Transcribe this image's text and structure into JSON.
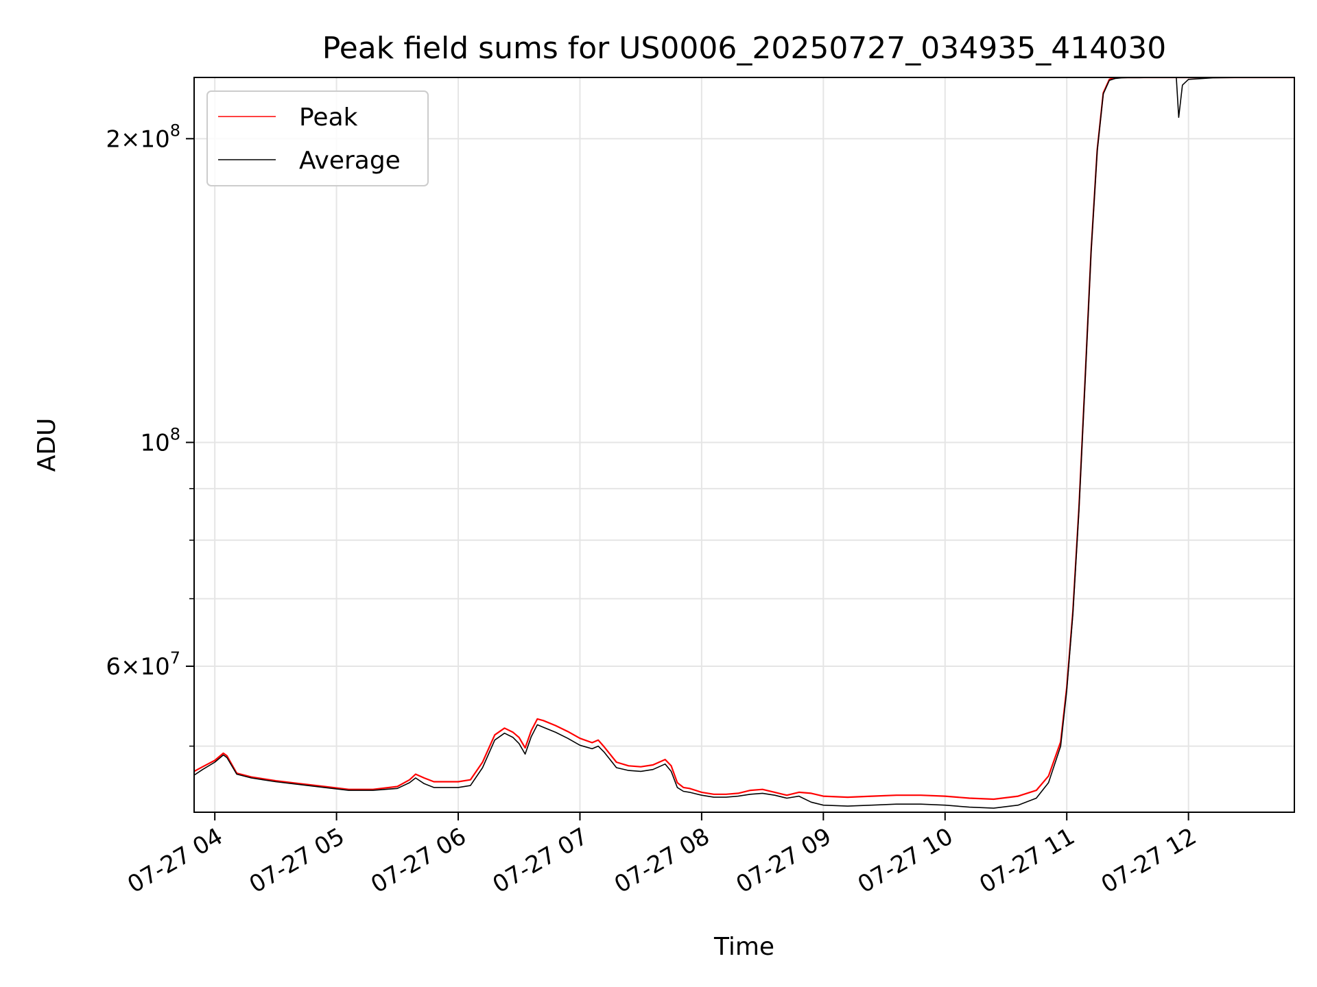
{
  "chart_data": {
    "type": "line",
    "title": "Peak field sums for US0006_20250727_034935_414030",
    "xlabel": "Time",
    "ylabel": "ADU",
    "y_scale": "log",
    "x_unit": "hours on 2025-07-27",
    "xlim": [
      3.83,
      12.87
    ],
    "ylim": [
      43000000,
      230000000
    ],
    "x_tick_values": [
      4,
      5,
      6,
      7,
      8,
      9,
      10,
      11,
      12
    ],
    "x_tick_labels": [
      "07-27 04",
      "07-27 05",
      "07-27 06",
      "07-27 07",
      "07-27 08",
      "07-27 09",
      "07-27 10",
      "07-27 11",
      "07-27 12"
    ],
    "y_tick_labels": [
      {
        "value": 200000000,
        "mantissa": "2",
        "exponent": "8"
      },
      {
        "value": 100000000,
        "mantissa": "",
        "exponent": "8"
      },
      {
        "value": 60000000,
        "mantissa": "6",
        "exponent": "7"
      }
    ],
    "y_minor_ticks": [
      50000000,
      70000000,
      80000000,
      90000000
    ],
    "grid": true,
    "legend_position": "top-left",
    "series": [
      {
        "name": "Peak",
        "color": "#ff0000",
        "x": [
          3.83,
          3.9,
          4.0,
          4.07,
          4.1,
          4.18,
          4.3,
          4.5,
          4.7,
          4.9,
          5.1,
          5.3,
          5.5,
          5.6,
          5.65,
          5.72,
          5.8,
          5.9,
          6.0,
          6.1,
          6.2,
          6.3,
          6.38,
          6.45,
          6.5,
          6.55,
          6.6,
          6.65,
          6.7,
          6.8,
          6.9,
          7.0,
          7.1,
          7.15,
          7.2,
          7.3,
          7.4,
          7.5,
          7.6,
          7.7,
          7.75,
          7.8,
          7.85,
          7.9,
          8.0,
          8.1,
          8.2,
          8.3,
          8.4,
          8.5,
          8.6,
          8.7,
          8.8,
          8.9,
          9.0,
          9.2,
          9.4,
          9.6,
          9.8,
          10.0,
          10.2,
          10.4,
          10.6,
          10.75,
          10.85,
          10.95,
          11.0,
          11.05,
          11.1,
          11.15,
          11.2,
          11.25,
          11.3,
          11.35,
          11.4,
          11.45,
          11.5,
          11.55,
          11.6,
          11.7,
          11.8,
          11.9,
          11.92,
          11.95,
          12.0,
          12.2,
          12.5,
          12.87
        ],
        "y": [
          47200000,
          47700000,
          48400000,
          49200000,
          48900000,
          47000000,
          46600000,
          46200000,
          45900000,
          45600000,
          45300000,
          45300000,
          45600000,
          46300000,
          46900000,
          46500000,
          46100000,
          46100000,
          46100000,
          46300000,
          48200000,
          51300000,
          52100000,
          51600000,
          51000000,
          49800000,
          51800000,
          53200000,
          53000000,
          52400000,
          51700000,
          50900000,
          50400000,
          50700000,
          49900000,
          48200000,
          47800000,
          47700000,
          47900000,
          48500000,
          47800000,
          46000000,
          45500000,
          45400000,
          45000000,
          44800000,
          44800000,
          44900000,
          45200000,
          45300000,
          45000000,
          44700000,
          45000000,
          44900000,
          44600000,
          44500000,
          44600000,
          44700000,
          44700000,
          44600000,
          44400000,
          44300000,
          44600000,
          45200000,
          46700000,
          50500000,
          57200000,
          68000000,
          86000000,
          115000000,
          155000000,
          195000000,
          222000000,
          229000000,
          230000000,
          230000000,
          230000000,
          230000000,
          230000000,
          230000000,
          230000000,
          230000000,
          230000000,
          230000000,
          230000000,
          230000000,
          230000000,
          230000000
        ]
      },
      {
        "name": "Average",
        "color": "#000000",
        "x": [
          3.83,
          3.9,
          4.0,
          4.07,
          4.1,
          4.18,
          4.3,
          4.5,
          4.7,
          4.9,
          5.1,
          5.3,
          5.5,
          5.6,
          5.65,
          5.72,
          5.8,
          5.9,
          6.0,
          6.1,
          6.2,
          6.3,
          6.38,
          6.45,
          6.5,
          6.55,
          6.6,
          6.65,
          6.7,
          6.8,
          6.9,
          7.0,
          7.1,
          7.15,
          7.2,
          7.3,
          7.4,
          7.5,
          7.6,
          7.7,
          7.75,
          7.8,
          7.85,
          7.9,
          8.0,
          8.1,
          8.2,
          8.3,
          8.4,
          8.5,
          8.6,
          8.7,
          8.8,
          8.9,
          9.0,
          9.2,
          9.4,
          9.6,
          9.8,
          10.0,
          10.2,
          10.4,
          10.6,
          10.75,
          10.85,
          10.95,
          11.0,
          11.05,
          11.1,
          11.15,
          11.2,
          11.25,
          11.3,
          11.35,
          11.4,
          11.45,
          11.5,
          11.55,
          11.6,
          11.7,
          11.8,
          11.9,
          11.92,
          11.95,
          12.0,
          12.2,
          12.5,
          12.87
        ],
        "y": [
          46800000,
          47400000,
          48200000,
          49000000,
          48700000,
          46900000,
          46500000,
          46100000,
          45800000,
          45500000,
          45200000,
          45200000,
          45400000,
          46000000,
          46500000,
          45900000,
          45500000,
          45500000,
          45500000,
          45700000,
          47600000,
          50700000,
          51500000,
          51000000,
          50300000,
          49100000,
          51100000,
          52500000,
          52200000,
          51600000,
          50900000,
          50100000,
          49700000,
          50000000,
          49300000,
          47600000,
          47300000,
          47200000,
          47400000,
          48000000,
          47200000,
          45500000,
          45100000,
          45000000,
          44700000,
          44500000,
          44500000,
          44600000,
          44800000,
          44900000,
          44700000,
          44400000,
          44600000,
          44000000,
          43700000,
          43600000,
          43700000,
          43800000,
          43800000,
          43700000,
          43500000,
          43400000,
          43700000,
          44400000,
          46000000,
          50000000,
          56800000,
          67600000,
          85500000,
          114500000,
          154500000,
          194500000,
          221500000,
          228500000,
          229500000,
          229800000,
          229900000,
          229900000,
          229900000,
          230000000,
          230000000,
          230000000,
          210000000,
          226000000,
          229000000,
          229800000,
          230000000,
          230000000
        ]
      }
    ]
  }
}
